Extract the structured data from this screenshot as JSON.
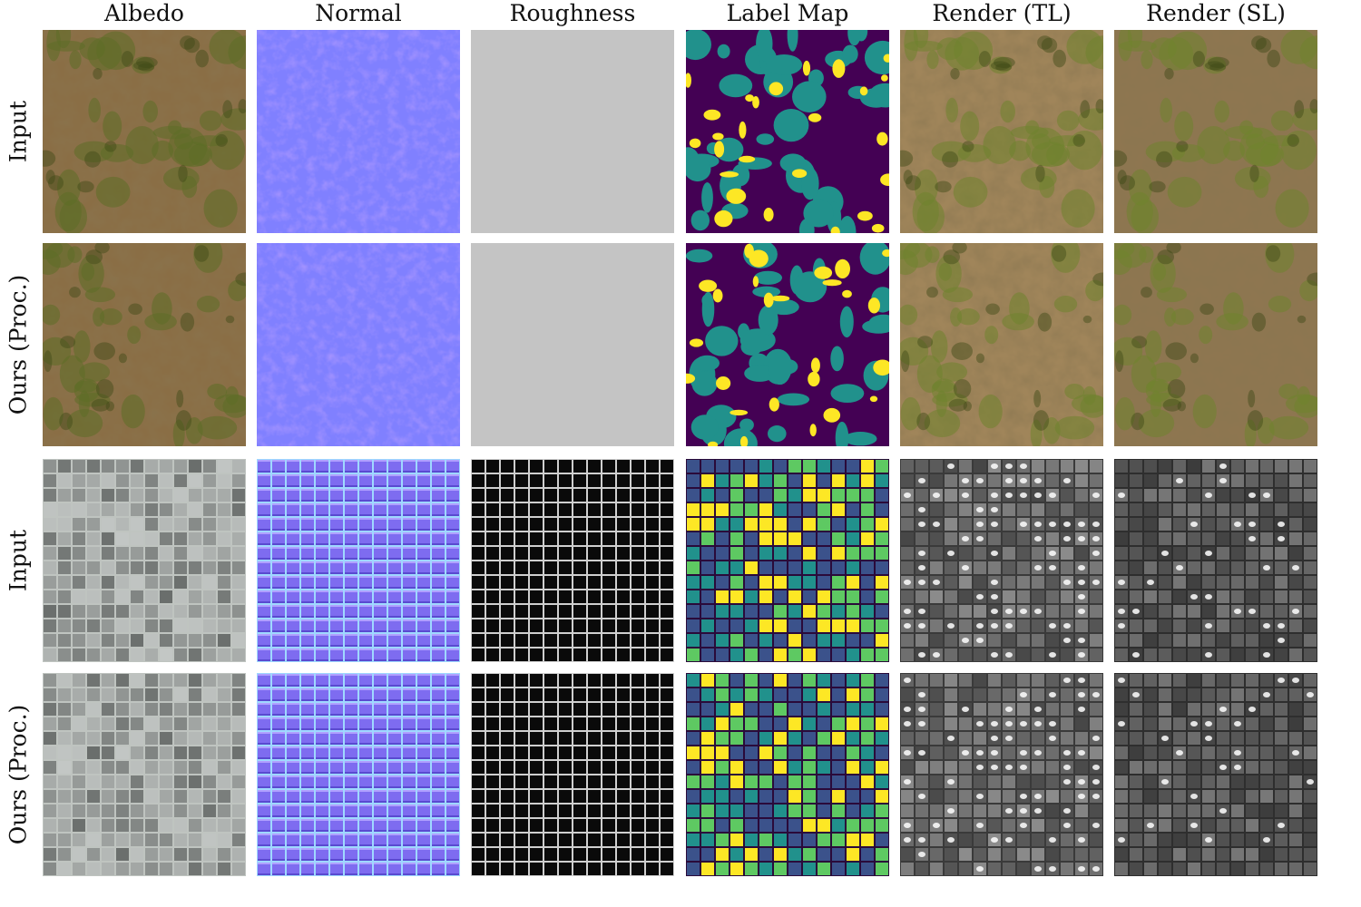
{
  "figure": {
    "column_headers": [
      "Albedo",
      "Normal",
      "Roughness",
      "Label Map",
      "Render (TL)",
      "Render (SL)"
    ],
    "rows": [
      {
        "label": "Input",
        "material": "grass"
      },
      {
        "label": "Ours (Proc.)",
        "material": "grass"
      },
      {
        "label": "Input",
        "material": "tiles"
      },
      {
        "label": "Ours (Proc.)",
        "material": "tiles"
      }
    ],
    "colors": {
      "grass_soil": "#8a6e45",
      "grass_green": "#5c6e26",
      "normal_base": "#8080ff",
      "roughness_light": "#c4c4c4",
      "label_purple": "#440154",
      "label_teal": "#21918c",
      "label_yellow": "#fde725",
      "label_blue": "#3b528b",
      "label_green": "#5ec962",
      "tile_dark": "#0a0a0a"
    }
  }
}
